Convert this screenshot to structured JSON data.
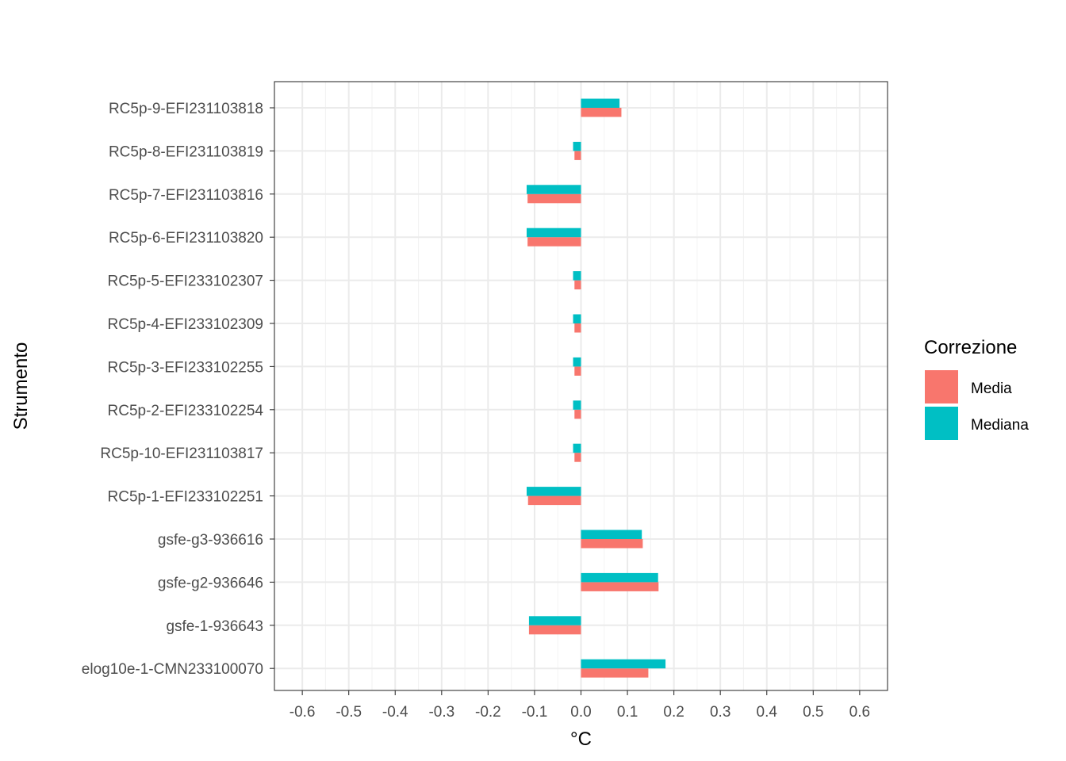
{
  "chart_data": {
    "type": "bar",
    "orientation": "horizontal",
    "xlabel": "°C",
    "ylabel": "Strumento",
    "xlim": [
      -0.66,
      0.66
    ],
    "xticks": [
      -0.6,
      -0.5,
      -0.4,
      -0.3,
      -0.2,
      -0.1,
      0.0,
      0.1,
      0.2,
      0.3,
      0.4,
      0.5,
      0.6
    ],
    "xtick_labels": [
      "-0.6",
      "-0.5",
      "-0.4",
      "-0.3",
      "-0.2",
      "-0.1",
      "0.0",
      "0.1",
      "0.2",
      "0.3",
      "0.4",
      "0.5",
      "0.6"
    ],
    "grid": true,
    "legend": {
      "title": "Correzione",
      "position": "right"
    },
    "categories": [
      "RC5p-9-EFI231103818",
      "RC5p-8-EFI231103819",
      "RC5p-7-EFI231103816",
      "RC5p-6-EFI231103820",
      "RC5p-5-EFI233102307",
      "RC5p-4-EFI233102309",
      "RC5p-3-EFI233102255",
      "RC5p-2-EFI233102254",
      "RC5p-10-EFI231103817",
      "RC5p-1-EFI233102251",
      "gsfe-g3-936616",
      "gsfe-g2-936646",
      "gsfe-1-936643",
      "elog10e-1-CMN233100070"
    ],
    "series": [
      {
        "name": "Media",
        "color": "#F8766D",
        "values": [
          0.087,
          -0.014,
          -0.115,
          -0.115,
          -0.014,
          -0.014,
          -0.014,
          -0.014,
          -0.014,
          -0.114,
          0.133,
          0.167,
          -0.112,
          0.145
        ]
      },
      {
        "name": "Mediana",
        "color": "#00BFC4",
        "values": [
          0.083,
          -0.017,
          -0.117,
          -0.117,
          -0.017,
          -0.017,
          -0.017,
          -0.017,
          -0.017,
          -0.117,
          0.131,
          0.166,
          -0.112,
          0.182
        ]
      }
    ]
  }
}
